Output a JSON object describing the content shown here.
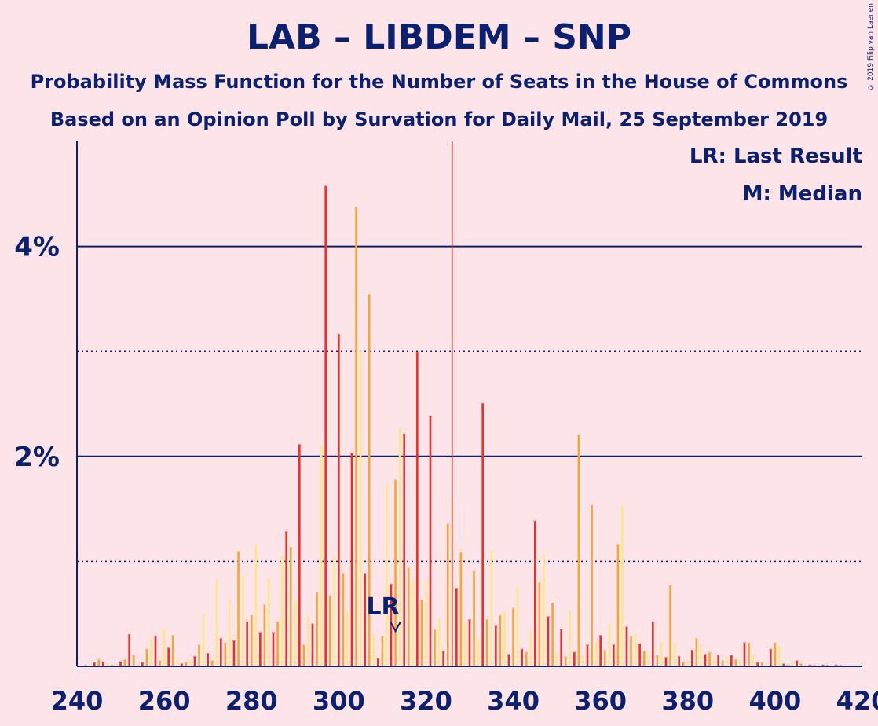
{
  "title": "LAB – LIBDEM – SNP",
  "subtitle": "Probability Mass Function for the Number of Seats in the House of Commons",
  "subtitle2": "Based on an Opinion Poll by Survation for Daily Mail, 25 September 2019",
  "legend": {
    "lr": "LR: Last Result",
    "median": "M: Median"
  },
  "copyright": "© 2019 Filip van Laenen",
  "colors": {
    "background": "#fde4e9",
    "axis": "#0c2070",
    "bar_red": "#e8302a",
    "bar_orange": "#f5a53a",
    "bar_yellow": "#fde78a",
    "median_line": "#e8302a"
  },
  "chart_data": {
    "type": "bar",
    "x_range": [
      240,
      420
    ],
    "ylim": [
      0,
      5
    ],
    "x_ticks": [
      240,
      260,
      280,
      300,
      320,
      340,
      360,
      380,
      400,
      420
    ],
    "x_tick_labels": [
      "240",
      "260",
      "280",
      "300",
      "320",
      "340",
      "360",
      "380",
      "400",
      "420"
    ],
    "y_major_ticks": [
      2,
      4
    ],
    "y_tick_labels": [
      "2%",
      "4%"
    ],
    "y_minor_gridlines": [
      1,
      3
    ],
    "last_result": {
      "seats": 313,
      "label": "LR"
    },
    "median": {
      "seats": 326
    },
    "bars": [
      [
        242,
        0.01,
        "o"
      ],
      [
        243,
        0.02,
        "y"
      ],
      [
        244,
        0.03,
        "r"
      ],
      [
        245,
        0.06,
        "o"
      ],
      [
        246,
        0.04,
        "r"
      ],
      [
        247,
        0.03,
        "y"
      ],
      [
        248,
        0.01,
        "o"
      ],
      [
        249,
        0.02,
        "y"
      ],
      [
        250,
        0.04,
        "r"
      ],
      [
        251,
        0.06,
        "o"
      ],
      [
        252,
        0.3,
        "r"
      ],
      [
        253,
        0.1,
        "o"
      ],
      [
        254,
        0.02,
        "y"
      ],
      [
        255,
        0.03,
        "r"
      ],
      [
        256,
        0.16,
        "o"
      ],
      [
        257,
        0.25,
        "y"
      ],
      [
        258,
        0.28,
        "r"
      ],
      [
        259,
        0.05,
        "o"
      ],
      [
        260,
        0.35,
        "y"
      ],
      [
        261,
        0.17,
        "r"
      ],
      [
        262,
        0.29,
        "o"
      ],
      [
        263,
        0.06,
        "y"
      ],
      [
        264,
        0.02,
        "r"
      ],
      [
        265,
        0.04,
        "o"
      ],
      [
        266,
        0.06,
        "y"
      ],
      [
        267,
        0.09,
        "r"
      ],
      [
        268,
        0.2,
        "o"
      ],
      [
        269,
        0.48,
        "y"
      ],
      [
        270,
        0.12,
        "r"
      ],
      [
        271,
        0.05,
        "o"
      ],
      [
        272,
        0.82,
        "y"
      ],
      [
        273,
        0.26,
        "r"
      ],
      [
        274,
        0.22,
        "o"
      ],
      [
        275,
        0.62,
        "y"
      ],
      [
        276,
        0.24,
        "r"
      ],
      [
        277,
        1.09,
        "o"
      ],
      [
        278,
        0.85,
        "y"
      ],
      [
        279,
        0.42,
        "r"
      ],
      [
        280,
        0.48,
        "o"
      ],
      [
        281,
        1.15,
        "y"
      ],
      [
        282,
        0.32,
        "r"
      ],
      [
        283,
        0.58,
        "o"
      ],
      [
        284,
        0.83,
        "y"
      ],
      [
        285,
        0.32,
        "r"
      ],
      [
        286,
        0.42,
        "o"
      ],
      [
        287,
        1.05,
        "y"
      ],
      [
        288,
        1.28,
        "r"
      ],
      [
        289,
        1.13,
        "o"
      ],
      [
        290,
        0.61,
        "y"
      ],
      [
        291,
        2.11,
        "r"
      ],
      [
        292,
        0.2,
        "o"
      ],
      [
        293,
        0.47,
        "y"
      ],
      [
        294,
        0.4,
        "r"
      ],
      [
        295,
        0.7,
        "o"
      ],
      [
        296,
        2.1,
        "y"
      ],
      [
        297,
        4.57,
        "r"
      ],
      [
        298,
        0.67,
        "o"
      ],
      [
        299,
        1.05,
        "y"
      ],
      [
        300,
        3.16,
        "r"
      ],
      [
        301,
        0.88,
        "o"
      ],
      [
        302,
        0.52,
        "y"
      ],
      [
        303,
        2.03,
        "r"
      ],
      [
        304,
        4.37,
        "o"
      ],
      [
        305,
        3.0,
        "y"
      ],
      [
        306,
        0.88,
        "r"
      ],
      [
        307,
        3.54,
        "o"
      ],
      [
        308,
        0.3,
        "y"
      ],
      [
        309,
        0.07,
        "r"
      ],
      [
        310,
        0.28,
        "o"
      ],
      [
        311,
        1.73,
        "y"
      ],
      [
        312,
        0.78,
        "r"
      ],
      [
        313,
        1.77,
        "o"
      ],
      [
        314,
        2.27,
        "y"
      ],
      [
        315,
        2.21,
        "r"
      ],
      [
        316,
        0.93,
        "o"
      ],
      [
        317,
        0.82,
        "y"
      ],
      [
        318,
        2.99,
        "r"
      ],
      [
        319,
        0.63,
        "o"
      ],
      [
        320,
        0.82,
        "y"
      ],
      [
        321,
        2.38,
        "r"
      ],
      [
        322,
        0.35,
        "o"
      ],
      [
        323,
        0.45,
        "y"
      ],
      [
        324,
        0.14,
        "r"
      ],
      [
        325,
        1.35,
        "o"
      ],
      [
        326,
        1.59,
        "y"
      ],
      [
        327,
        0.74,
        "r"
      ],
      [
        328,
        1.08,
        "o"
      ],
      [
        329,
        0.42,
        "y"
      ],
      [
        330,
        0.44,
        "r"
      ],
      [
        331,
        0.9,
        "o"
      ],
      [
        332,
        0.24,
        "y"
      ],
      [
        333,
        2.5,
        "r"
      ],
      [
        334,
        0.44,
        "o"
      ],
      [
        335,
        1.1,
        "y"
      ],
      [
        336,
        0.38,
        "r"
      ],
      [
        337,
        0.48,
        "o"
      ],
      [
        338,
        0.52,
        "y"
      ],
      [
        339,
        0.11,
        "r"
      ],
      [
        340,
        0.55,
        "o"
      ],
      [
        341,
        0.75,
        "y"
      ],
      [
        342,
        0.16,
        "r"
      ],
      [
        343,
        0.13,
        "o"
      ],
      [
        344,
        0.33,
        "y"
      ],
      [
        345,
        1.38,
        "r"
      ],
      [
        346,
        0.79,
        "o"
      ],
      [
        347,
        1.07,
        "y"
      ],
      [
        348,
        0.47,
        "r"
      ],
      [
        349,
        0.6,
        "o"
      ],
      [
        350,
        0.13,
        "y"
      ],
      [
        351,
        0.35,
        "r"
      ],
      [
        352,
        0.09,
        "o"
      ],
      [
        353,
        0.52,
        "y"
      ],
      [
        354,
        0.13,
        "r"
      ],
      [
        355,
        2.2,
        "o"
      ],
      [
        356,
        0.1,
        "y"
      ],
      [
        357,
        0.2,
        "r"
      ],
      [
        358,
        1.53,
        "o"
      ],
      [
        359,
        0.22,
        "y"
      ],
      [
        360,
        0.29,
        "r"
      ],
      [
        361,
        0.15,
        "o"
      ],
      [
        362,
        0.4,
        "y"
      ],
      [
        363,
        0.2,
        "r"
      ],
      [
        364,
        1.16,
        "o"
      ],
      [
        365,
        1.52,
        "y"
      ],
      [
        366,
        0.37,
        "r"
      ],
      [
        367,
        0.28,
        "o"
      ],
      [
        368,
        0.31,
        "y"
      ],
      [
        369,
        0.21,
        "r"
      ],
      [
        370,
        0.14,
        "o"
      ],
      [
        371,
        0.12,
        "y"
      ],
      [
        372,
        0.42,
        "r"
      ],
      [
        373,
        0.1,
        "o"
      ],
      [
        374,
        0.22,
        "y"
      ],
      [
        375,
        0.08,
        "r"
      ],
      [
        376,
        0.77,
        "o"
      ],
      [
        377,
        0.21,
        "y"
      ],
      [
        378,
        0.09,
        "r"
      ],
      [
        379,
        0.04,
        "o"
      ],
      [
        380,
        0.05,
        "y"
      ],
      [
        381,
        0.15,
        "r"
      ],
      [
        382,
        0.26,
        "o"
      ],
      [
        383,
        0.2,
        "y"
      ],
      [
        384,
        0.11,
        "r"
      ],
      [
        385,
        0.13,
        "o"
      ],
      [
        386,
        0.07,
        "y"
      ],
      [
        387,
        0.1,
        "r"
      ],
      [
        388,
        0.05,
        "o"
      ],
      [
        389,
        0.08,
        "y"
      ],
      [
        390,
        0.1,
        "r"
      ],
      [
        391,
        0.06,
        "o"
      ],
      [
        392,
        0.05,
        "y"
      ],
      [
        393,
        0.22,
        "r"
      ],
      [
        394,
        0.22,
        "o"
      ],
      [
        395,
        0.1,
        "y"
      ],
      [
        396,
        0.03,
        "r"
      ],
      [
        397,
        0.03,
        "o"
      ],
      [
        398,
        0.02,
        "y"
      ],
      [
        399,
        0.16,
        "r"
      ],
      [
        400,
        0.22,
        "o"
      ],
      [
        401,
        0.19,
        "y"
      ],
      [
        402,
        0.02,
        "r"
      ],
      [
        403,
        0.01,
        "o"
      ],
      [
        404,
        0.03,
        "y"
      ],
      [
        405,
        0.05,
        "r"
      ],
      [
        406,
        0.02,
        "o"
      ],
      [
        407,
        0.01,
        "y"
      ],
      [
        408,
        0.01,
        "r"
      ],
      [
        409,
        0.01,
        "o"
      ],
      [
        410,
        0.01,
        "y"
      ],
      [
        411,
        0.01,
        "r"
      ],
      [
        412,
        0.01,
        "o"
      ],
      [
        413,
        0.01,
        "y"
      ],
      [
        414,
        0.01,
        "r"
      ],
      [
        415,
        0.01,
        "o"
      ],
      [
        416,
        0.01,
        "y"
      ]
    ]
  }
}
